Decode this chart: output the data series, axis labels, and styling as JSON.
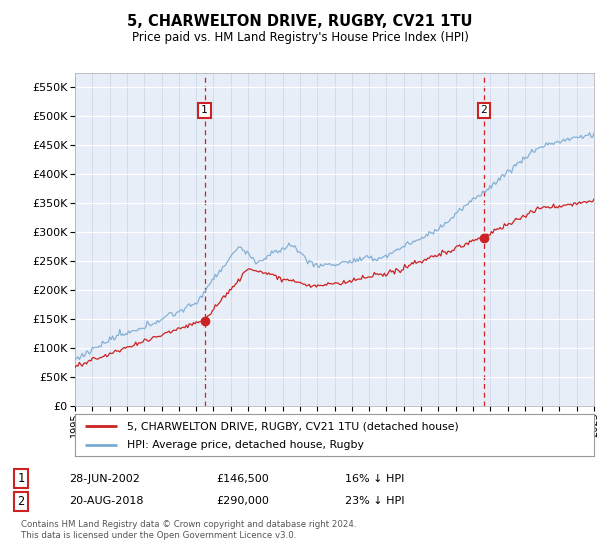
{
  "title": "5, CHARWELTON DRIVE, RUGBY, CV21 1TU",
  "subtitle": "Price paid vs. HM Land Registry's House Price Index (HPI)",
  "plot_bg_color": "#e8eef8",
  "hpi_color": "#7aaad0",
  "price_color": "#cc2222",
  "marker_color": "#cc2222",
  "dashed_color": "#cc2222",
  "ylim": [
    0,
    575000
  ],
  "yticks": [
    0,
    50000,
    100000,
    150000,
    200000,
    250000,
    300000,
    350000,
    400000,
    450000,
    500000,
    550000
  ],
  "annotation1": {
    "label": "1",
    "x_year": 2002.49,
    "price": 146500,
    "text_date": "28-JUN-2002",
    "text_price": "£146,500",
    "text_pct": "16% ↓ HPI"
  },
  "annotation2": {
    "label": "2",
    "x_year": 2018.63,
    "price": 290000,
    "text_date": "20-AUG-2018",
    "text_price": "£290,000",
    "text_pct": "23% ↓ HPI"
  },
  "legend_line1": "5, CHARWELTON DRIVE, RUGBY, CV21 1TU (detached house)",
  "legend_line2": "HPI: Average price, detached house, Rugby",
  "footnote": "Contains HM Land Registry data © Crown copyright and database right 2024.\nThis data is licensed under the Open Government Licence v3.0.",
  "xmin": 1995,
  "xmax": 2025
}
